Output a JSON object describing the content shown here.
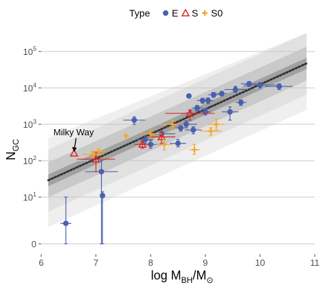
{
  "chart_data": {
    "type": "scatter",
    "xlabel": {
      "main": "log M",
      "sub": "BH",
      "tail": "/M",
      "sym": "⊙"
    },
    "ylabel": {
      "main": "N",
      "sub": "GC"
    },
    "xlim": [
      6,
      11
    ],
    "xticks": [
      "6",
      "7",
      "8",
      "9",
      "10",
      "11"
    ],
    "ylog": true,
    "yticks": [
      {
        "value": 1,
        "base": "0",
        "exp": ""
      },
      {
        "value": 10,
        "base": "10",
        "exp": "1"
      },
      {
        "value": 100,
        "base": "10",
        "exp": "2"
      },
      {
        "value": 1000,
        "base": "10",
        "exp": "3"
      },
      {
        "value": 10000,
        "base": "10",
        "exp": "4"
      },
      {
        "value": 100000,
        "base": "10",
        "exp": "5"
      }
    ],
    "grid": true,
    "legend": {
      "placement": "top",
      "title": "Type",
      "entries": [
        {
          "label": "E",
          "color": "#4B5FAE",
          "shape": "circle"
        },
        {
          "label": "S",
          "color": "#D62828",
          "shape": "triangle"
        },
        {
          "label": "S0",
          "color": "#F5A623",
          "shape": "diamond"
        }
      ]
    },
    "fit_line": {
      "x": [
        6.13,
        10.85
      ],
      "y": [
        29,
        47000
      ],
      "style": "dotted",
      "color": "#333333"
    },
    "bands": [
      {
        "x": [
          6.13,
          10.85
        ],
        "lower": [
          20,
          33000
        ],
        "upper": [
          42,
          67000
        ],
        "color": "#9a9a9a"
      },
      {
        "x": [
          6.13,
          10.85
        ],
        "lower": [
          10,
          16000
        ],
        "upper": [
          90,
          135000
        ],
        "color": "#c4c4c4"
      },
      {
        "x": [
          6.13,
          10.85
        ],
        "lower": [
          4,
          6500
        ],
        "upper": [
          200,
          320000
        ],
        "color": "#dedede"
      },
      {
        "x": [
          6.13,
          10.85
        ],
        "lower": [
          1.5,
          2500
        ],
        "upper": [
          420,
          700000
        ],
        "color": "#ececec"
      }
    ],
    "series": [
      {
        "name": "E",
        "color": "#4B5FAE",
        "points": [
          {
            "x": 6.45,
            "y": 1.9,
            "xerr": 0.1,
            "ylo": 1,
            "yhi": 10
          },
          {
            "x": 7.1,
            "y": 50,
            "xerr": 0.3,
            "ylo": 1,
            "yhi": 100
          },
          {
            "x": 7.12,
            "y": 11,
            "xerr": 0.0,
            "ylo": 1,
            "yhi": 14
          },
          {
            "x": 7.7,
            "y": 1300,
            "xerr": 0.2,
            "ylo": 1000,
            "yhi": 1600
          },
          {
            "x": 7.9,
            "y": 380,
            "xerr": 0.15,
            "ylo": 300,
            "yhi": 480
          },
          {
            "x": 8.0,
            "y": 280,
            "xerr": 0.2,
            "ylo": 220,
            "yhi": 360
          },
          {
            "x": 8.2,
            "y": 550,
            "xerr": 0.25,
            "ylo": 450,
            "yhi": 650
          },
          {
            "x": 8.5,
            "y": 300,
            "xerr": 0.15,
            "ylo": 240,
            "yhi": 380
          },
          {
            "x": 8.55,
            "y": 800,
            "xerr": 0.1,
            "ylo": 650,
            "yhi": 980
          },
          {
            "x": 8.65,
            "y": 1000,
            "xerr": 0.2,
            "ylo": 800,
            "yhi": 1250
          },
          {
            "x": 8.7,
            "y": 6000,
            "xerr": 0.0,
            "ylo": 5500,
            "yhi": 6500
          },
          {
            "x": 8.78,
            "y": 700,
            "xerr": 0.15,
            "ylo": 550,
            "yhi": 850
          },
          {
            "x": 8.85,
            "y": 2800,
            "xerr": 0.1,
            "ylo": 2300,
            "yhi": 3300
          },
          {
            "x": 8.95,
            "y": 4500,
            "xerr": 0.1,
            "ylo": 3800,
            "yhi": 5200
          },
          {
            "x": 9.0,
            "y": 2200,
            "xerr": 0.1,
            "ylo": 1800,
            "yhi": 2700
          },
          {
            "x": 9.05,
            "y": 4500,
            "xerr": 0.1,
            "ylo": 3700,
            "yhi": 5300
          },
          {
            "x": 9.15,
            "y": 6500,
            "xerr": 0.1,
            "ylo": 5500,
            "yhi": 7500
          },
          {
            "x": 9.3,
            "y": 7000,
            "xerr": 0.1,
            "ylo": 6000,
            "yhi": 8000
          },
          {
            "x": 9.45,
            "y": 2200,
            "xerr": 0.15,
            "ylo": 1300,
            "yhi": 3000
          },
          {
            "x": 9.55,
            "y": 9000,
            "xerr": 0.2,
            "ylo": 7500,
            "yhi": 11000
          },
          {
            "x": 9.65,
            "y": 4000,
            "xerr": 0.1,
            "ylo": 3300,
            "yhi": 4700
          },
          {
            "x": 9.8,
            "y": 13000,
            "xerr": 0.15,
            "ylo": 11000,
            "yhi": 15000
          },
          {
            "x": 10.0,
            "y": 12000,
            "xerr": 0.3,
            "ylo": 10000,
            "yhi": 14000
          },
          {
            "x": 10.35,
            "y": 11000,
            "xerr": 0.25,
            "ylo": 9000,
            "yhi": 13000
          }
        ]
      },
      {
        "name": "S",
        "color": "#D62828",
        "points": [
          {
            "x": 6.6,
            "y": 160,
            "xerr": 0.0,
            "ylo": 160,
            "yhi": 160
          },
          {
            "x": 7.0,
            "y": 110,
            "xerr": 0.35,
            "ylo": 50,
            "yhi": 170
          },
          {
            "x": 7.85,
            "y": 280,
            "xerr": 0.15,
            "ylo": 220,
            "yhi": 350
          },
          {
            "x": 8.2,
            "y": 450,
            "xerr": 0.25,
            "ylo": 300,
            "yhi": 600
          },
          {
            "x": 8.72,
            "y": 2000,
            "xerr": 0.45,
            "ylo": 1300,
            "yhi": 2500
          }
        ]
      },
      {
        "name": "S0",
        "color": "#F5A623",
        "points": [
          {
            "x": 6.95,
            "y": 150,
            "xerr": 0.2,
            "ylo": 130,
            "yhi": 170
          },
          {
            "x": 7.05,
            "y": 180,
            "xerr": 0.15,
            "ylo": 150,
            "yhi": 210
          },
          {
            "x": 7.55,
            "y": 480,
            "xerr": 0.0,
            "ylo": 480,
            "yhi": 480
          },
          {
            "x": 8.0,
            "y": 550,
            "xerr": 0.2,
            "ylo": 400,
            "yhi": 700
          },
          {
            "x": 8.25,
            "y": 280,
            "xerr": 0.15,
            "ylo": 200,
            "yhi": 380
          },
          {
            "x": 8.4,
            "y": 1000,
            "xerr": 0.2,
            "ylo": 700,
            "yhi": 1300
          },
          {
            "x": 8.8,
            "y": 200,
            "xerr": 0.1,
            "ylo": 150,
            "yhi": 280
          },
          {
            "x": 9.1,
            "y": 650,
            "xerr": 0.2,
            "ylo": 500,
            "yhi": 800
          },
          {
            "x": 9.2,
            "y": 1000,
            "xerr": 0.15,
            "ylo": 700,
            "yhi": 1400
          }
        ]
      }
    ],
    "annotations": [
      {
        "text": "Milky Way",
        "x": 6.6,
        "y": 160
      }
    ]
  }
}
